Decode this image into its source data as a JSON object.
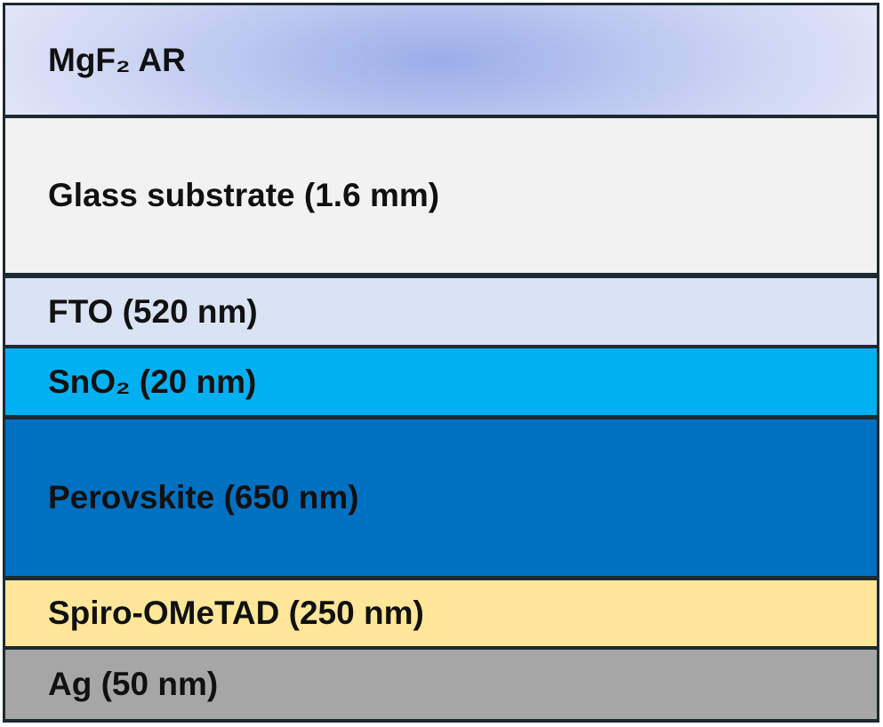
{
  "layers": [
    {
      "label": "MgF₂ AR"
    },
    {
      "label": "Glass substrate (1.6 mm)"
    },
    {
      "label": "FTO (520 nm)"
    },
    {
      "label": "SnO₂ (20 nm)"
    },
    {
      "label": "Perovskite (650 nm)"
    },
    {
      "label": "Spiro-OMeTAD (250 nm)"
    },
    {
      "label": "Ag (50 nm)"
    }
  ]
}
